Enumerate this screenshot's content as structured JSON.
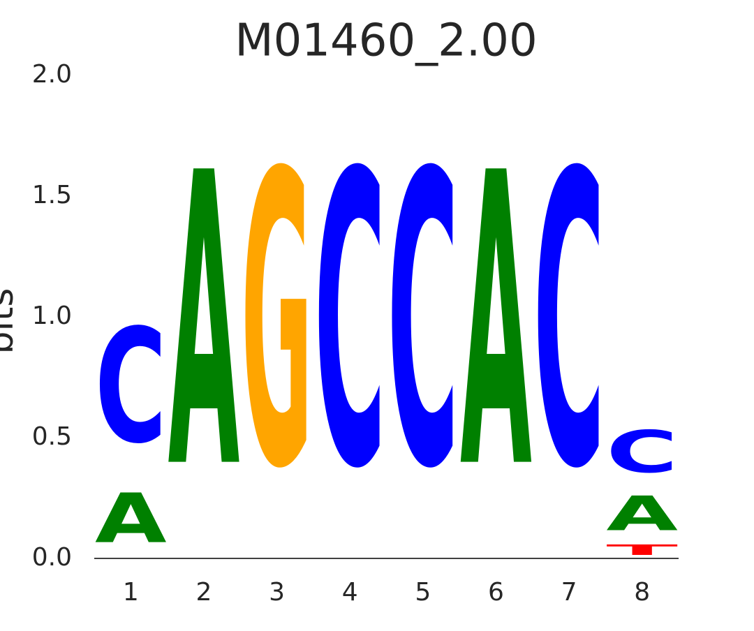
{
  "chart_data": {
    "type": "logo",
    "title": "M01460_2.00",
    "ylabel": "bits",
    "categories": [
      "1",
      "2",
      "3",
      "4",
      "5",
      "6",
      "7",
      "8"
    ],
    "series": [
      {
        "name": "T",
        "color": "#ff0000",
        "values": [
          0,
          0,
          0,
          0,
          0,
          0,
          0,
          0.07
        ]
      },
      {
        "name": "A",
        "color": "#008000",
        "values": [
          0.33,
          1.95,
          0,
          0,
          0,
          1.95,
          0,
          0.23
        ]
      },
      {
        "name": "C",
        "color": "#0000ff",
        "values": [
          0.76,
          0,
          0,
          1.95,
          1.95,
          0,
          1.95,
          0.28
        ]
      },
      {
        "name": "G",
        "color": "#ffa500",
        "values": [
          0,
          0,
          1.95,
          0,
          0,
          0,
          0,
          0
        ]
      }
    ],
    "ylim": [
      0,
      2
    ],
    "yticks": [
      {
        "value": 0,
        "label": "0.0"
      },
      0.5,
      {
        "value": 1,
        "label": "1.0"
      },
      1.5,
      {
        "value": 2,
        "label": "2.0"
      }
    ]
  }
}
